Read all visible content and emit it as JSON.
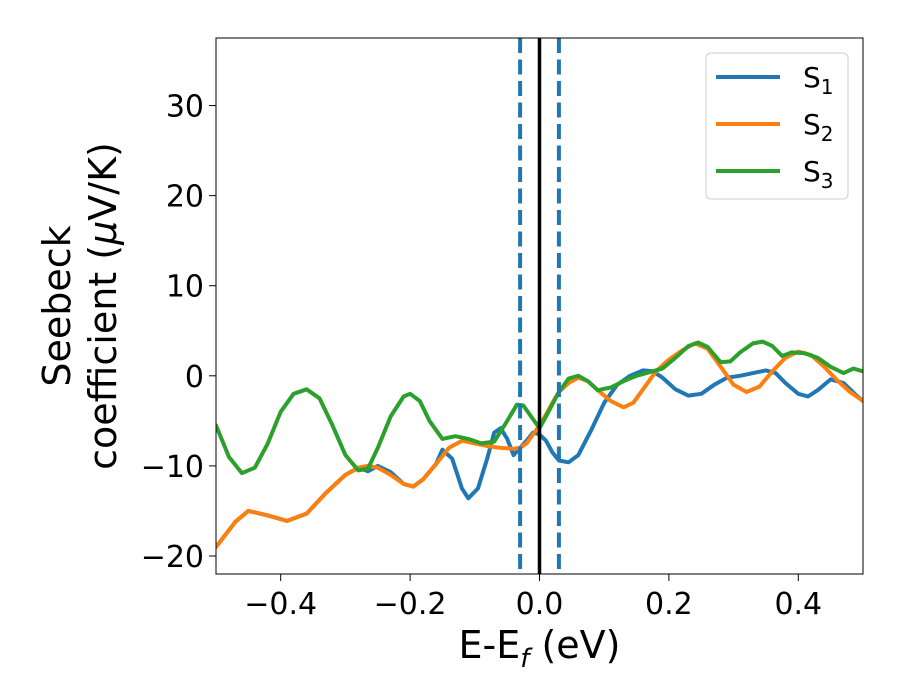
{
  "chart_data": {
    "type": "line",
    "xlabel": {
      "base": "E-E",
      "sub": "f",
      "tail": " (eV)"
    },
    "ylabel": {
      "line1": "Seebeck",
      "line2_pre": "coefficient  (",
      "mu": "μ",
      "line2_post": "V/K)"
    },
    "xlim": [
      -0.5,
      0.5
    ],
    "ylim": [
      -22,
      37.5
    ],
    "x_ticks": [
      {
        "value": -0.4,
        "label": "−0.4"
      },
      {
        "value": -0.2,
        "label": "−0.2"
      },
      {
        "value": 0.0,
        "label": "0.0"
      },
      {
        "value": 0.2,
        "label": "0.2"
      },
      {
        "value": 0.4,
        "label": "0.4"
      }
    ],
    "y_ticks": [
      {
        "value": -20,
        "label": "−20"
      },
      {
        "value": -10,
        "label": "−10"
      },
      {
        "value": 0,
        "label": "0"
      },
      {
        "value": 10,
        "label": "10"
      },
      {
        "value": 20,
        "label": "20"
      },
      {
        "value": 30,
        "label": "30"
      }
    ],
    "grid": false,
    "legend_position": "top-right",
    "vertical_lines": [
      {
        "x": -0.03,
        "style": "dashed",
        "color": "#1f77b4"
      },
      {
        "x": 0.0,
        "style": "solid",
        "color": "#000000"
      },
      {
        "x": 0.03,
        "style": "dashed",
        "color": "#1f77b4"
      }
    ],
    "series": [
      {
        "name": "S",
        "sub": "1",
        "color": "#1f77b4",
        "points": [
          [
            -0.5,
            -19.0
          ],
          [
            -0.47,
            -16.2
          ],
          [
            -0.45,
            -15.0
          ],
          [
            -0.42,
            -15.5
          ],
          [
            -0.39,
            -16.1
          ],
          [
            -0.36,
            -15.3
          ],
          [
            -0.33,
            -13.0
          ],
          [
            -0.3,
            -11.0
          ],
          [
            -0.28,
            -10.2
          ],
          [
            -0.265,
            -10.6
          ],
          [
            -0.25,
            -10.0
          ],
          [
            -0.23,
            -10.7
          ],
          [
            -0.21,
            -12.0
          ],
          [
            -0.195,
            -12.3
          ],
          [
            -0.18,
            -11.5
          ],
          [
            -0.16,
            -9.8
          ],
          [
            -0.15,
            -8.2
          ],
          [
            -0.135,
            -9.2
          ],
          [
            -0.12,
            -12.5
          ],
          [
            -0.11,
            -13.6
          ],
          [
            -0.095,
            -12.5
          ],
          [
            -0.08,
            -9.0
          ],
          [
            -0.07,
            -6.3
          ],
          [
            -0.06,
            -5.8
          ],
          [
            -0.05,
            -7.0
          ],
          [
            -0.04,
            -8.8
          ],
          [
            -0.03,
            -8.0
          ],
          [
            -0.02,
            -7.2
          ],
          [
            -0.01,
            -6.3
          ],
          [
            0.0,
            -6.5
          ],
          [
            0.01,
            -7.2
          ],
          [
            0.02,
            -8.5
          ],
          [
            0.03,
            -9.4
          ],
          [
            0.045,
            -9.6
          ],
          [
            0.06,
            -8.8
          ],
          [
            0.08,
            -6.0
          ],
          [
            0.1,
            -3.0
          ],
          [
            0.12,
            -1.0
          ],
          [
            0.14,
            0.0
          ],
          [
            0.16,
            0.6
          ],
          [
            0.175,
            0.5
          ],
          [
            0.19,
            -0.2
          ],
          [
            0.21,
            -1.5
          ],
          [
            0.23,
            -2.2
          ],
          [
            0.25,
            -2.0
          ],
          [
            0.27,
            -1.0
          ],
          [
            0.29,
            -0.2
          ],
          [
            0.31,
            0.0
          ],
          [
            0.33,
            0.3
          ],
          [
            0.35,
            0.6
          ],
          [
            0.365,
            0.3
          ],
          [
            0.38,
            -0.8
          ],
          [
            0.4,
            -2.0
          ],
          [
            0.415,
            -2.3
          ],
          [
            0.43,
            -1.6
          ],
          [
            0.45,
            -0.4
          ],
          [
            0.47,
            -0.8
          ],
          [
            0.49,
            -2.2
          ],
          [
            0.5,
            -2.8
          ]
        ]
      },
      {
        "name": "S",
        "sub": "2",
        "color": "#ff7f0e",
        "points": [
          [
            -0.5,
            -19.0
          ],
          [
            -0.47,
            -16.2
          ],
          [
            -0.45,
            -15.0
          ],
          [
            -0.42,
            -15.5
          ],
          [
            -0.39,
            -16.1
          ],
          [
            -0.36,
            -15.3
          ],
          [
            -0.33,
            -13.0
          ],
          [
            -0.3,
            -11.0
          ],
          [
            -0.28,
            -10.2
          ],
          [
            -0.265,
            -10.0
          ],
          [
            -0.25,
            -10.2
          ],
          [
            -0.23,
            -11.0
          ],
          [
            -0.21,
            -12.0
          ],
          [
            -0.195,
            -12.3
          ],
          [
            -0.18,
            -11.5
          ],
          [
            -0.16,
            -9.8
          ],
          [
            -0.14,
            -8.0
          ],
          [
            -0.12,
            -7.2
          ],
          [
            -0.1,
            -7.5
          ],
          [
            -0.08,
            -7.8
          ],
          [
            -0.06,
            -8.0
          ],
          [
            -0.04,
            -8.1
          ],
          [
            -0.03,
            -8.0
          ],
          [
            -0.02,
            -7.5
          ],
          [
            -0.01,
            -6.5
          ],
          [
            0.0,
            -5.5
          ],
          [
            0.01,
            -4.3
          ],
          [
            0.02,
            -3.0
          ],
          [
            0.03,
            -1.8
          ],
          [
            0.045,
            -0.8
          ],
          [
            0.06,
            -0.2
          ],
          [
            0.075,
            -0.6
          ],
          [
            0.09,
            -1.6
          ],
          [
            0.11,
            -2.8
          ],
          [
            0.13,
            -3.5
          ],
          [
            0.145,
            -3.0
          ],
          [
            0.16,
            -1.5
          ],
          [
            0.18,
            0.5
          ],
          [
            0.2,
            1.8
          ],
          [
            0.22,
            2.8
          ],
          [
            0.24,
            3.6
          ],
          [
            0.26,
            3.0
          ],
          [
            0.28,
            1.0
          ],
          [
            0.3,
            -1.0
          ],
          [
            0.32,
            -1.8
          ],
          [
            0.34,
            -1.2
          ],
          [
            0.36,
            0.5
          ],
          [
            0.38,
            2.0
          ],
          [
            0.4,
            2.7
          ],
          [
            0.42,
            2.3
          ],
          [
            0.44,
            1.0
          ],
          [
            0.46,
            -0.5
          ],
          [
            0.48,
            -1.8
          ],
          [
            0.5,
            -2.8
          ]
        ]
      },
      {
        "name": "S",
        "sub": "3",
        "color": "#2ca02c",
        "points": [
          [
            -0.5,
            -5.5
          ],
          [
            -0.48,
            -9.0
          ],
          [
            -0.46,
            -10.8
          ],
          [
            -0.44,
            -10.2
          ],
          [
            -0.42,
            -7.5
          ],
          [
            -0.4,
            -4.0
          ],
          [
            -0.38,
            -2.0
          ],
          [
            -0.36,
            -1.5
          ],
          [
            -0.34,
            -2.5
          ],
          [
            -0.32,
            -5.5
          ],
          [
            -0.3,
            -8.8
          ],
          [
            -0.28,
            -10.5
          ],
          [
            -0.265,
            -10.3
          ],
          [
            -0.25,
            -8.0
          ],
          [
            -0.23,
            -4.5
          ],
          [
            -0.21,
            -2.3
          ],
          [
            -0.2,
            -2.0
          ],
          [
            -0.185,
            -2.8
          ],
          [
            -0.17,
            -5.0
          ],
          [
            -0.15,
            -7.0
          ],
          [
            -0.13,
            -6.7
          ],
          [
            -0.11,
            -7.0
          ],
          [
            -0.09,
            -7.5
          ],
          [
            -0.07,
            -7.3
          ],
          [
            -0.05,
            -5.0
          ],
          [
            -0.035,
            -3.2
          ],
          [
            -0.025,
            -3.3
          ],
          [
            -0.01,
            -4.8
          ],
          [
            0.0,
            -5.8
          ],
          [
            0.01,
            -4.5
          ],
          [
            0.03,
            -1.8
          ],
          [
            0.045,
            -0.3
          ],
          [
            0.06,
            0.0
          ],
          [
            0.075,
            -0.6
          ],
          [
            0.09,
            -1.6
          ],
          [
            0.11,
            -1.3
          ],
          [
            0.13,
            -0.6
          ],
          [
            0.15,
            0.0
          ],
          [
            0.17,
            0.4
          ],
          [
            0.19,
            0.8
          ],
          [
            0.21,
            2.0
          ],
          [
            0.23,
            3.3
          ],
          [
            0.245,
            3.7
          ],
          [
            0.26,
            3.2
          ],
          [
            0.28,
            1.5
          ],
          [
            0.295,
            1.6
          ],
          [
            0.31,
            2.6
          ],
          [
            0.33,
            3.6
          ],
          [
            0.345,
            3.8
          ],
          [
            0.36,
            3.3
          ],
          [
            0.375,
            2.2
          ],
          [
            0.39,
            2.6
          ],
          [
            0.41,
            2.5
          ],
          [
            0.43,
            2.0
          ],
          [
            0.45,
            1.0
          ],
          [
            0.47,
            0.3
          ],
          [
            0.485,
            0.8
          ],
          [
            0.5,
            0.5
          ]
        ]
      }
    ]
  }
}
